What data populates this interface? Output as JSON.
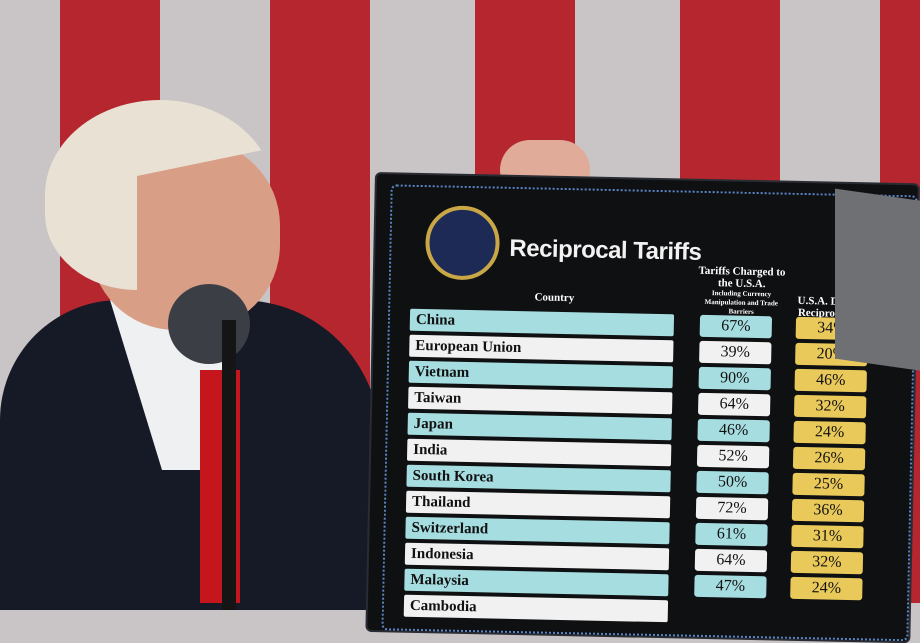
{
  "board": {
    "title": "Reciprocal Tariffs",
    "col_country": "Country",
    "col_charged": "Tariffs Charged to the U.S.A.",
    "col_charged_note": "Including Currency Manipulation and Trade Barriers",
    "col_discounted": "U.S.A. Discounted Reciprocal Tariffs",
    "rows": [
      {
        "country": "China",
        "charged": "67%",
        "reciprocal": "34%"
      },
      {
        "country": "European Union",
        "charged": "39%",
        "reciprocal": "20%"
      },
      {
        "country": "Vietnam",
        "charged": "90%",
        "reciprocal": "46%"
      },
      {
        "country": "Taiwan",
        "charged": "64%",
        "reciprocal": "32%"
      },
      {
        "country": "Japan",
        "charged": "46%",
        "reciprocal": "24%"
      },
      {
        "country": "India",
        "charged": "52%",
        "reciprocal": "26%"
      },
      {
        "country": "South Korea",
        "charged": "50%",
        "reciprocal": "25%"
      },
      {
        "country": "Thailand",
        "charged": "72%",
        "reciprocal": "36%"
      },
      {
        "country": "Switzerland",
        "charged": "61%",
        "reciprocal": "31%"
      },
      {
        "country": "Indonesia",
        "charged": "64%",
        "reciprocal": "32%"
      },
      {
        "country": "Malaysia",
        "charged": "47%",
        "reciprocal": "24%"
      },
      {
        "country": "Cambodia"
      }
    ]
  },
  "colors": {
    "teal": "#a6dde0",
    "white_row": "#f1f1f1",
    "gold": "#e9c95a",
    "flag_red": "#b5262e"
  }
}
